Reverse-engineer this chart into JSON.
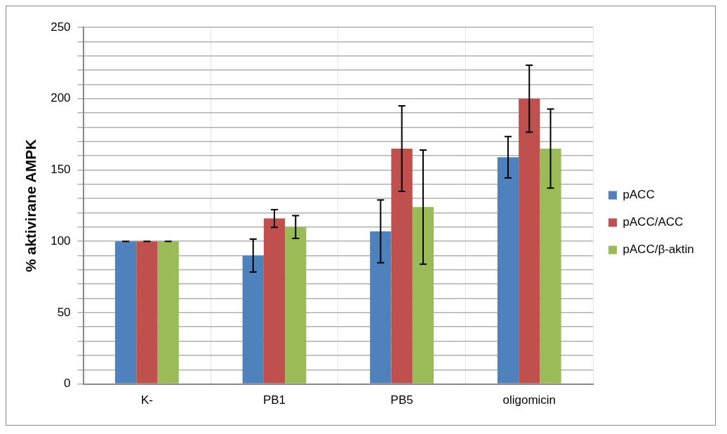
{
  "chart_data": {
    "type": "bar",
    "ylabel": "% aktivirane AMPK",
    "categories": [
      "K-",
      "PB1",
      "PB5",
      "oligomicin"
    ],
    "series": [
      {
        "name": "pACC",
        "color": "#4f81bd",
        "values": [
          100,
          90,
          107,
          159
        ],
        "errors": [
          0,
          11.5,
          22,
          14.5
        ]
      },
      {
        "name": "pACC/ACC",
        "color": "#c0504d",
        "values": [
          100,
          116,
          165,
          200
        ],
        "errors": [
          0,
          6.2,
          30,
          23.5
        ]
      },
      {
        "name": "pACC/β-aktin",
        "color": "#9bbb59",
        "values": [
          100,
          110,
          124,
          165
        ],
        "errors": [
          0,
          8,
          40,
          27.7
        ]
      }
    ],
    "ylim": [
      0,
      250
    ],
    "yticks": [
      0,
      {
        "value": 10,
        "label": null
      },
      {
        "value": 20,
        "label": null
      },
      {
        "value": 30,
        "label": null
      },
      {
        "value": 40,
        "label": null
      },
      50,
      {
        "value": 60,
        "label": null
      },
      {
        "value": 70,
        "label": null
      },
      {
        "value": 80,
        "label": null
      },
      {
        "value": 90,
        "label": null
      },
      100,
      {
        "value": 110,
        "label": null
      },
      {
        "value": 120,
        "label": null
      },
      {
        "value": 130,
        "label": null
      },
      {
        "value": 140,
        "label": null
      },
      150,
      {
        "value": 160,
        "label": null
      },
      {
        "value": 170,
        "label": null
      },
      {
        "value": 180,
        "label": null
      },
      {
        "value": 190,
        "label": null
      },
      200,
      {
        "value": 210,
        "label": null
      },
      {
        "value": 220,
        "label": null
      },
      {
        "value": 230,
        "label": null
      },
      {
        "value": 240,
        "label": null
      },
      250
    ],
    "grid": true,
    "legend": "right"
  }
}
